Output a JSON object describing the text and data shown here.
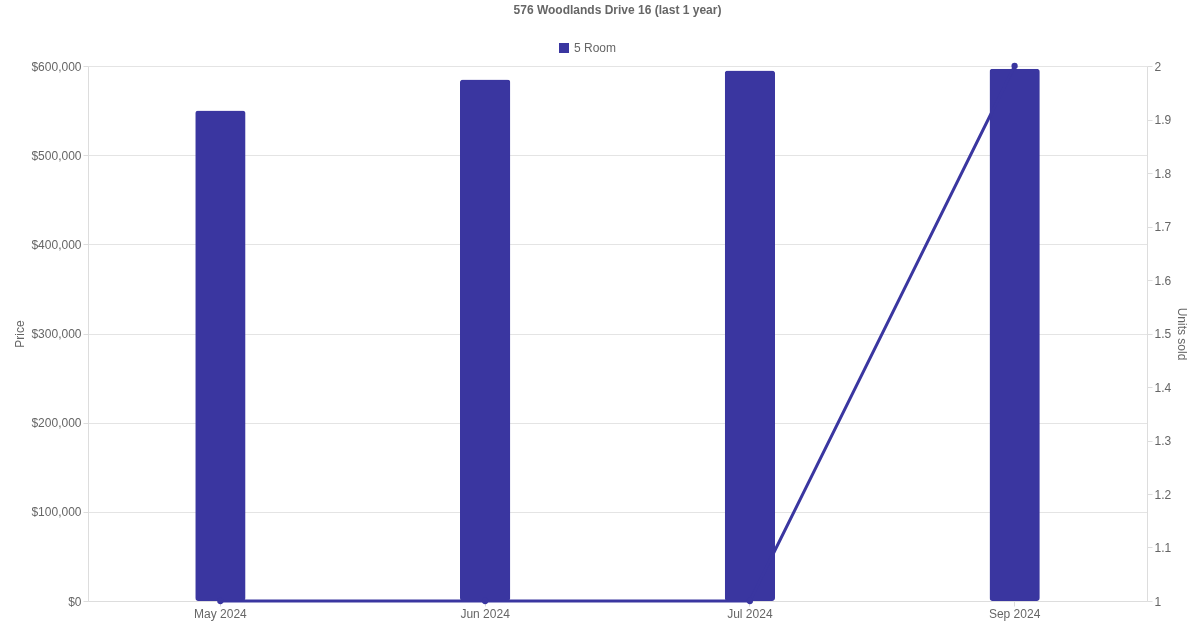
{
  "chart_data": {
    "type": "bar",
    "title": "576 Woodlands Drive 16 (last 1 year)",
    "ylabel": "Price",
    "y2label": "Units sold",
    "categories": [
      "May 2024",
      "Jun 2024",
      "Jul 2024",
      "Sep 2024"
    ],
    "series": [
      {
        "name": "5 Room",
        "color": "#3a36a0",
        "values": [
          550000,
          585000,
          595000,
          597000
        ]
      },
      {
        "type": "line",
        "axis": "y2",
        "color": "#3a36a0",
        "values": [
          1,
          1,
          1,
          2
        ]
      }
    ],
    "ylim": [
      0,
      600000
    ],
    "yticks": [
      {
        "value": 0,
        "label": "$0"
      },
      {
        "value": 100000,
        "label": "$100,000"
      },
      {
        "value": 200000,
        "label": "$200,000"
      },
      {
        "value": 300000,
        "label": "$300,000"
      },
      {
        "value": 400000,
        "label": "$400,000"
      },
      {
        "value": 500000,
        "label": "$500,000"
      },
      {
        "value": 600000,
        "label": "$600,000"
      }
    ],
    "y2lim": [
      1,
      2
    ],
    "y2ticks": [
      1,
      1.1,
      1.2,
      1.3,
      1.4,
      1.5,
      1.6,
      1.7,
      1.8,
      1.9,
      2
    ],
    "grid": "y",
    "legend": "top",
    "marker": "circle",
    "line_style": "solid"
  }
}
